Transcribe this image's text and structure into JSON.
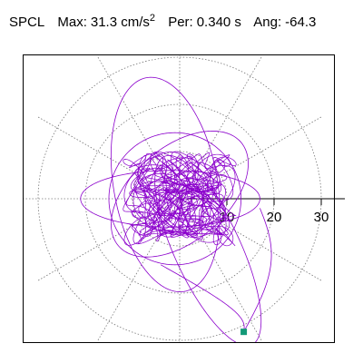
{
  "header": {
    "station": "SPCL",
    "max_label": "Max:",
    "max_value": "31.3 cm/s",
    "max_exp": "2",
    "per_label": "Per:",
    "per_value": "0.340 s",
    "ang_label": "Ang:",
    "ang_value": "-64.3"
  },
  "colors": {
    "trace": "#8b00cc",
    "marker": "#129977",
    "grid": "#777777",
    "axis": "#000000"
  },
  "chart_data": {
    "type": "scatter",
    "subtype": "polar-orbit",
    "r_ticks": [
      10,
      20,
      30
    ],
    "r_tick_labels": [
      "10",
      "20",
      "30"
    ],
    "rmax": 35,
    "radial_gridlines_deg": [
      0,
      30,
      60,
      90,
      120,
      150,
      180,
      210,
      240,
      270,
      300,
      330
    ],
    "grid": true,
    "max_amplitude": 31.3,
    "max_angle_deg": -64.3,
    "marker": {
      "r": 31.3,
      "angle_deg": -64.3
    }
  }
}
